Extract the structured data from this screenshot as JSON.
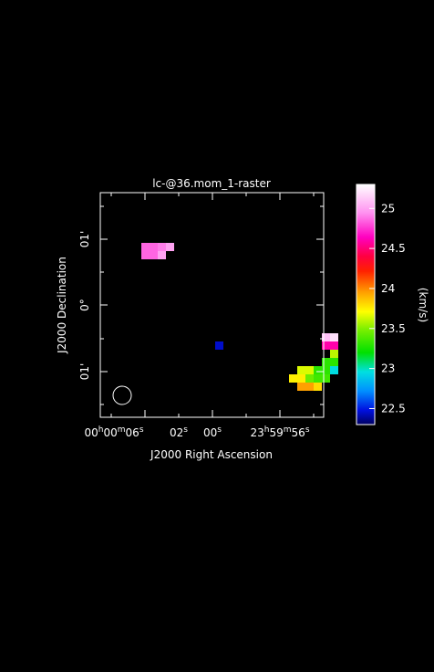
{
  "chart_data": {
    "type": "heatmap",
    "title": "lc-@36.mom_1-raster",
    "xlabel": "J2000 Right Ascension",
    "ylabel": "J2000 Declination",
    "x_ticks": [
      {
        "h": "00",
        "m": "00",
        "s": "06"
      },
      {
        "s": "02"
      },
      {
        "s": "00"
      },
      {
        "h": "23",
        "m": "59",
        "s": "56"
      }
    ],
    "y_ticks": [
      "01'",
      "0°",
      "01'"
    ],
    "colorbar": {
      "label": "(km/s)",
      "range": [
        22.3,
        25.3
      ],
      "ticks": [
        "22.5",
        "23",
        "23.5",
        "24",
        "24.5",
        "25"
      ],
      "tick_values": [
        22.5,
        23.0,
        23.5,
        24.0,
        24.5,
        25.0
      ]
    },
    "beam": "circle",
    "pixels": [
      {
        "col": 0,
        "row": 2,
        "value": 24.85
      },
      {
        "col": 1,
        "row": 2,
        "value": 24.85
      },
      {
        "col": 2,
        "row": 2,
        "value": 24.9
      },
      {
        "col": 3,
        "row": 2,
        "value": 25.0
      },
      {
        "col": 0,
        "row": 3,
        "value": 24.85
      },
      {
        "col": 1,
        "row": 3,
        "value": 24.85
      },
      {
        "col": 2,
        "row": 3,
        "value": 25.0
      },
      {
        "col": 9,
        "row": 14,
        "value": 22.45
      },
      {
        "col": 22,
        "row": 13,
        "value": 25.1
      },
      {
        "col": 23,
        "row": 13,
        "value": 25.2
      },
      {
        "col": 22,
        "row": 14,
        "value": 24.6
      },
      {
        "col": 23,
        "row": 14,
        "value": 24.6
      },
      {
        "col": 23,
        "row": 15,
        "value": 23.6
      },
      {
        "col": 22,
        "row": 16,
        "value": 23.3
      },
      {
        "col": 23,
        "row": 16,
        "value": 23.3
      },
      {
        "col": 19,
        "row": 17,
        "value": 23.65
      },
      {
        "col": 20,
        "row": 17,
        "value": 23.65
      },
      {
        "col": 21,
        "row": 17,
        "value": 23.3
      },
      {
        "col": 22,
        "row": 17,
        "value": 23.3
      },
      {
        "col": 23,
        "row": 17,
        "value": 22.95
      },
      {
        "col": 18,
        "row": 18,
        "value": 23.75
      },
      {
        "col": 19,
        "row": 18,
        "value": 23.75
      },
      {
        "col": 20,
        "row": 18,
        "value": 23.45
      },
      {
        "col": 21,
        "row": 18,
        "value": 23.35
      },
      {
        "col": 22,
        "row": 18,
        "value": 23.35
      },
      {
        "col": 19,
        "row": 19,
        "value": 23.95
      },
      {
        "col": 20,
        "row": 19,
        "value": 23.95
      },
      {
        "col": 21,
        "row": 19,
        "value": 23.8
      }
    ]
  }
}
